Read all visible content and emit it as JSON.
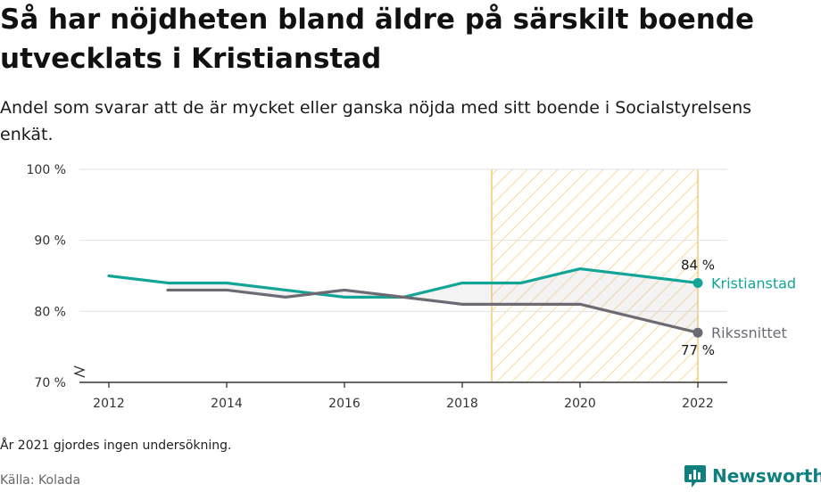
{
  "title": "Så har nöjdheten bland äldre på särskilt boende utvecklats i Kristianstad",
  "subtitle": "Andel som svarar att de är mycket eller ganska nöjda med sitt boende i Socialstyrelsens enkät.",
  "note": "År 2021 gjordes ingen undersökning.",
  "source": "Källa: Kolada",
  "brand": "Newsworthy",
  "colors": {
    "kristianstad": "#12a597",
    "riket": "#6d6a73",
    "highlight": "#f3c25a",
    "grid": "#e2e2e2",
    "axis": "#333333",
    "brand": "#0f7f7f"
  },
  "chart_data": {
    "type": "line",
    "x_ticks": [
      2012,
      2014,
      2016,
      2018,
      2020,
      2022
    ],
    "xlim": [
      2012,
      2022
    ],
    "ylim": [
      70,
      100
    ],
    "y_ticks": [
      100,
      90,
      80,
      70
    ],
    "y_tick_labels": [
      "100 %",
      "90 %",
      "80 %",
      "70 %"
    ],
    "y_axis_break": true,
    "grid": true,
    "highlight_range": [
      2018.5,
      2022
    ],
    "series": [
      {
        "name": "Kristianstad",
        "color_key": "kristianstad",
        "x": [
          2012,
          2013,
          2014,
          2015,
          2016,
          2017,
          2018,
          2019,
          2020,
          2022
        ],
        "y": [
          85,
          84,
          84,
          83,
          82,
          82,
          84,
          84,
          86,
          84
        ],
        "end_label": "84 %"
      },
      {
        "name": "Rikssnittet",
        "color_key": "riket",
        "x": [
          2013,
          2014,
          2015,
          2016,
          2017,
          2018,
          2019,
          2020,
          2022
        ],
        "y": [
          83,
          83,
          82,
          83,
          82,
          81,
          81,
          81,
          77
        ],
        "end_label": "77 %"
      }
    ]
  }
}
